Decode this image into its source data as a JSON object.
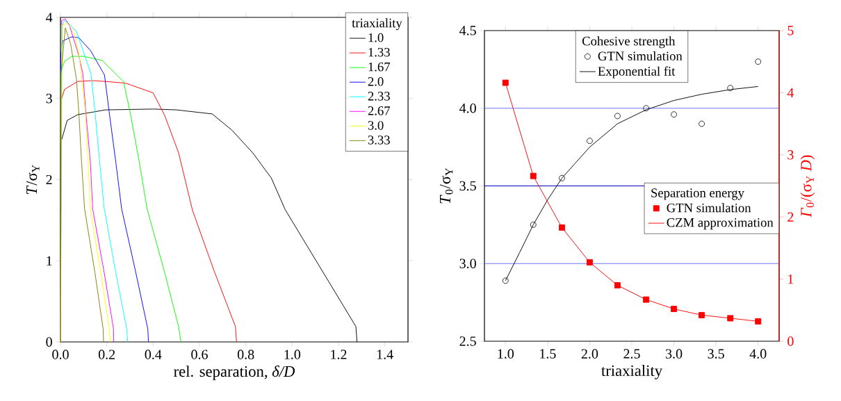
{
  "chart_data": [
    {
      "type": "line",
      "xlabel": "rel. separation, *δ/D*",
      "ylabel": "*T*/σ$_{Y}$",
      "legend_title": "triaxiality",
      "legend": "top right",
      "xlim": [
        0,
        1.5
      ],
      "ylim": [
        0,
        4
      ],
      "xticks": [
        {
          "value": 0,
          "label": "0.0"
        },
        {
          "value": 0.2,
          "label": "0.2"
        },
        {
          "value": 0.4,
          "label": "0.4"
        },
        {
          "value": 0.6,
          "label": "0.6"
        },
        {
          "value": 0.8,
          "label": "0.8"
        },
        {
          "value": 1.0,
          "label": "1.0"
        },
        {
          "value": 1.2,
          "label": "1.2"
        },
        {
          "value": 1.4,
          "label": "1.4"
        }
      ],
      "yticks": [
        0,
        1,
        2,
        3,
        4
      ],
      "series": [
        {
          "name": "1.0",
          "color": "#000000",
          "x": [
            0,
            0.001,
            0.029,
            0.074,
            0.194,
            0.4,
            0.5,
            0.655,
            0.74,
            0.83,
            0.91,
            0.97,
            1.275,
            1.28
          ],
          "values": [
            0,
            2.45,
            2.73,
            2.8,
            2.86,
            2.87,
            2.86,
            2.81,
            2.61,
            2.33,
            2.02,
            1.63,
            0.19,
            0
          ]
        },
        {
          "name": "1.33",
          "color": "#ff0000",
          "x": [
            0,
            0.001,
            0.017,
            0.039,
            0.074,
            0.14,
            0.194,
            0.28,
            0.4,
            0.45,
            0.51,
            0.57,
            0.66,
            0.755,
            0.76
          ],
          "values": [
            0,
            2.96,
            3.11,
            3.15,
            3.21,
            3.22,
            3.21,
            3.19,
            3.07,
            2.79,
            2.33,
            1.62,
            0.9,
            0.19,
            0
          ]
        },
        {
          "name": "1.67",
          "color": "#00ff00",
          "x": [
            0,
            0.001,
            0.018,
            0.049,
            0.099,
            0.18,
            0.272,
            0.3,
            0.34,
            0.374,
            0.45,
            0.51,
            0.52
          ],
          "values": [
            0,
            3.33,
            3.46,
            3.52,
            3.52,
            3.47,
            3.21,
            2.84,
            2.22,
            1.64,
            0.85,
            0.19,
            0
          ]
        },
        {
          "name": "2.0",
          "color": "#0000ff",
          "x": [
            0,
            0.002,
            0.01,
            0.049,
            0.079,
            0.13,
            0.19,
            0.21,
            0.24,
            0.264,
            0.324,
            0.377,
            0.38
          ],
          "values": [
            0,
            3.56,
            3.71,
            3.76,
            3.75,
            3.59,
            3.29,
            2.84,
            2.19,
            1.64,
            0.87,
            0.16,
            0
          ]
        },
        {
          "name": "2.33",
          "color": "#00ffff",
          "x": [
            0,
            0.007,
            0.012,
            0.02,
            0.069,
            0.132,
            0.149,
            0.169,
            0.189,
            0.239,
            0.286,
            0.29
          ],
          "values": [
            0,
            3.87,
            3.94,
            3.96,
            3.83,
            3.3,
            2.84,
            2.22,
            1.64,
            0.85,
            0.16,
            0
          ]
        },
        {
          "name": "2.67",
          "color": "#ff00ff",
          "x": [
            0,
            0.005,
            0.021,
            0.039,
            0.079,
            0.097,
            0.109,
            0.129,
            0.139,
            0.189,
            0.229,
            0.23
          ],
          "values": [
            0,
            3.96,
            3.98,
            3.9,
            3.53,
            3.3,
            2.84,
            2.22,
            1.64,
            0.85,
            0.16,
            0
          ]
        },
        {
          "name": "3.0",
          "color": "#ffff00",
          "x": [
            0,
            0.005,
            0.029,
            0.054,
            0.079,
            0.094,
            0.107,
            0.119,
            0.129,
            0.174,
            0.211,
            0.215
          ],
          "values": [
            0,
            3.9,
            3.93,
            3.84,
            3.56,
            3.21,
            2.84,
            2.22,
            1.64,
            0.85,
            0.16,
            0
          ]
        },
        {
          "name": "3.33",
          "color": "#808000",
          "x": [
            0,
            0.002,
            0.021,
            0.044,
            0.069,
            0.079,
            0.091,
            0.104,
            0.149,
            0.184,
            0.186
          ],
          "values": [
            0,
            3.3,
            3.87,
            3.67,
            3.24,
            2.84,
            2.22,
            1.64,
            0.85,
            0.16,
            0
          ]
        }
      ]
    },
    {
      "type": "scatter",
      "xlabel": "triaxiality",
      "ylabel": "*T*$_{0}$/σ$_{Y}$",
      "legend_title": "Cohesive strength",
      "legend": "top",
      "xlim": [
        0.75,
        4.25
      ],
      "ylim": [
        2.5,
        4.5
      ],
      "xticks": [
        {
          "value": 1.0,
          "label": "1.0"
        },
        {
          "value": 1.5,
          "label": "1.5"
        },
        {
          "value": 2.0,
          "label": "2.0"
        },
        {
          "value": 2.5,
          "label": "2.5"
        },
        {
          "value": 3.0,
          "label": "3.0"
        },
        {
          "value": 3.5,
          "label": "3.5"
        },
        {
          "value": 4.0,
          "label": "4.0"
        }
      ],
      "yticks": [
        {
          "value": 2.5,
          "label": "2.5"
        },
        {
          "value": 3.0,
          "label": "3.0"
        },
        {
          "value": 3.5,
          "label": "3.5"
        },
        {
          "value": 4.0,
          "label": "4.0"
        },
        {
          "value": 4.5,
          "label": "4.5"
        }
      ],
      "ref_lines": [
        {
          "axis": "y",
          "value": 3.0,
          "color": "#7070ff"
        },
        {
          "axis": "y",
          "value": 3.5,
          "color": "#0000c0"
        },
        {
          "axis": "y",
          "value": 4.0,
          "color": "#7070ff"
        }
      ],
      "series": [
        {
          "name": "GTN simulation",
          "type": "scatter",
          "marker": "circle",
          "color": "#000000",
          "x": [
            1.0,
            1.33,
            1.67,
            2.0,
            2.33,
            2.67,
            3.0,
            3.33,
            3.67,
            4.0
          ],
          "values": [
            2.89,
            3.25,
            3.55,
            3.79,
            3.95,
            4.0,
            3.96,
            3.9,
            4.13,
            4.3
          ]
        },
        {
          "name": "Exponential fit",
          "type": "line",
          "color": "#000000",
          "x": [
            1.0,
            1.167,
            1.33,
            1.5,
            1.67,
            2.0,
            2.33,
            2.67,
            3.0,
            3.33,
            3.67,
            4.0
          ],
          "values": [
            2.89,
            3.07,
            3.25,
            3.41,
            3.55,
            3.75,
            3.9,
            3.99,
            4.05,
            4.09,
            4.12,
            4.14
          ]
        }
      ]
    },
    {
      "type": "scatter",
      "y2label": "*Γ*$_{0}$/(σ$_{Y}$ *D*)",
      "legend_title": "Separation energy",
      "legend": "right",
      "xlim": [
        0.75,
        4.25
      ],
      "y2lim": [
        0,
        5
      ],
      "y2ticks": [
        0,
        1,
        2,
        3,
        4,
        5
      ],
      "series": [
        {
          "name": "GTN simulation",
          "type": "scatter",
          "marker": "square",
          "axis": "y2",
          "color": "#ff0000",
          "x": [
            1.0,
            1.33,
            1.67,
            2.0,
            2.33,
            2.67,
            3.0,
            3.33,
            3.67,
            4.0
          ],
          "values": [
            4.16,
            2.66,
            1.83,
            1.27,
            0.9,
            0.67,
            0.52,
            0.42,
            0.37,
            0.32
          ]
        },
        {
          "name": "CZM approximation",
          "type": "line",
          "axis": "y2",
          "color": "#ff0000",
          "x": [
            1.0,
            1.33,
            1.67,
            2.0,
            2.33,
            2.67,
            3.0,
            3.33,
            3.67,
            4.0
          ],
          "values": [
            4.16,
            2.66,
            1.83,
            1.27,
            0.9,
            0.67,
            0.52,
            0.42,
            0.37,
            0.32
          ]
        }
      ]
    }
  ]
}
